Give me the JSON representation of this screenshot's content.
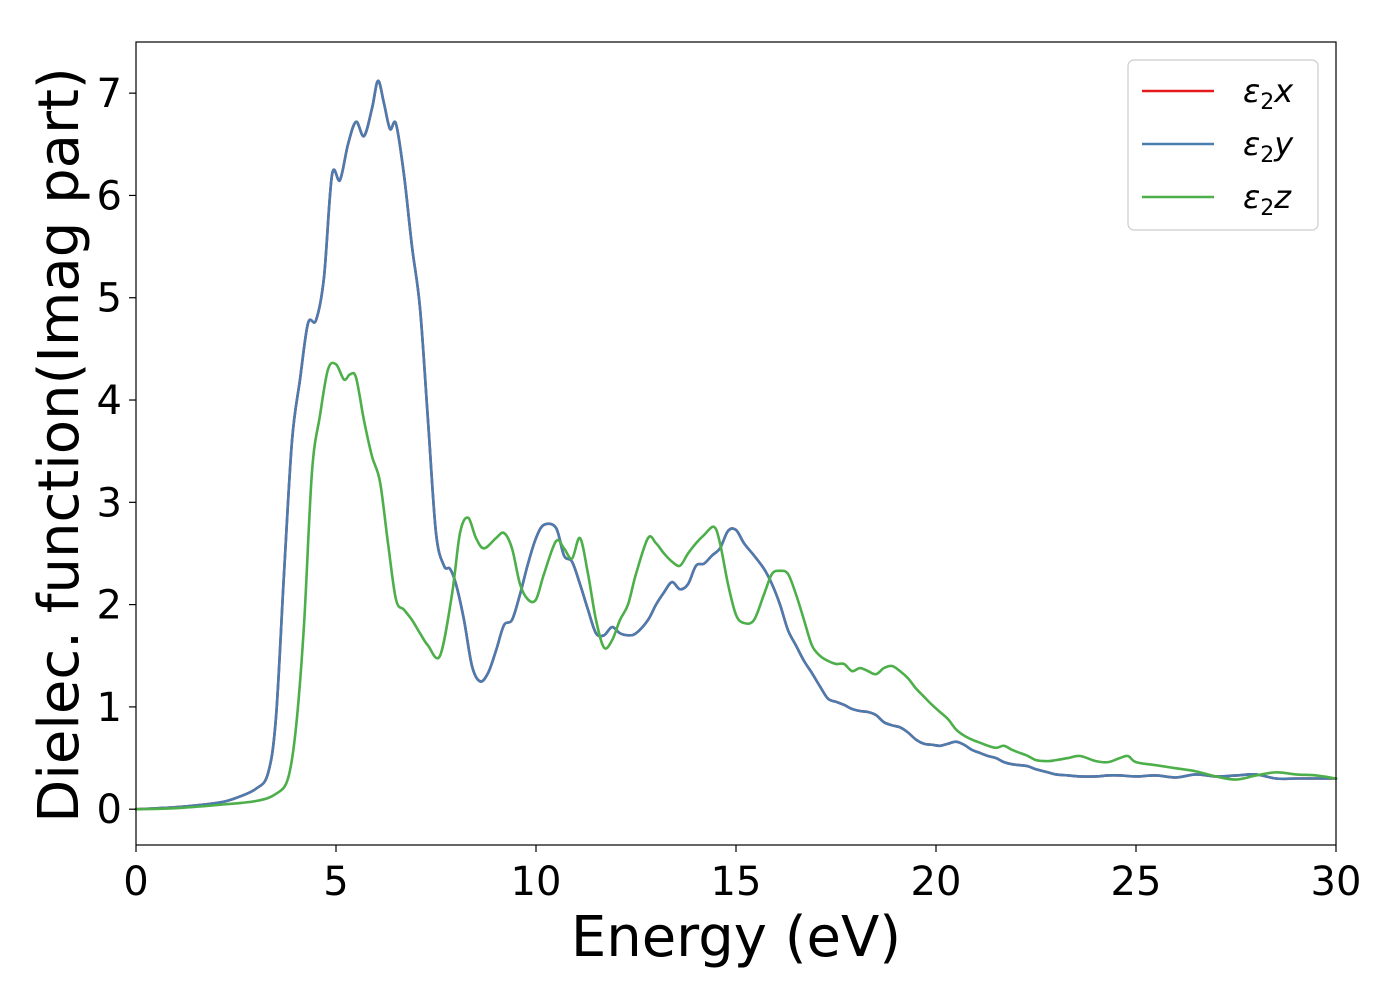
{
  "chart_data": {
    "type": "line",
    "title": "",
    "xlabel": "Energy (eV)",
    "ylabel": "Dielec. function(Imag part)",
    "xlim": [
      0,
      30
    ],
    "ylim": [
      -0.35,
      7.5
    ],
    "xticks": [
      0,
      5,
      10,
      15,
      20,
      25,
      30
    ],
    "yticks": [
      0,
      1,
      2,
      3,
      4,
      5,
      6,
      7
    ],
    "grid": false,
    "legend_position": "top-right",
    "series": [
      {
        "name": "ε2x",
        "label_base": "ε",
        "label_sub": "2",
        "label_tail": "x",
        "color": "#e41a1c",
        "x": [
          0,
          1,
          2,
          2.5,
          3,
          3.3,
          3.5,
          3.7,
          3.9,
          4.1,
          4.3,
          4.5,
          4.7,
          4.9,
          5.1,
          5.3,
          5.5,
          5.7,
          5.9,
          6.05,
          6.2,
          6.35,
          6.5,
          6.7,
          6.9,
          7.1,
          7.3,
          7.5,
          7.7,
          7.85,
          8.0,
          8.2,
          8.4,
          8.6,
          8.8,
          9.0,
          9.2,
          9.4,
          9.6,
          9.8,
          10.0,
          10.2,
          10.5,
          10.7,
          10.9,
          11.1,
          11.3,
          11.5,
          11.7,
          11.9,
          12.1,
          12.3,
          12.5,
          12.8,
          13.0,
          13.2,
          13.4,
          13.6,
          13.8,
          14.0,
          14.2,
          14.4,
          14.6,
          14.8,
          15.0,
          15.2,
          15.45,
          15.7,
          15.9,
          16.1,
          16.3,
          16.5,
          16.7,
          16.9,
          17.1,
          17.3,
          17.5,
          17.7,
          17.9,
          18.1,
          18.3,
          18.5,
          18.7,
          18.9,
          19.1,
          19.3,
          19.5,
          19.7,
          19.9,
          20.1,
          20.3,
          20.5,
          20.7,
          20.9,
          21.1,
          21.3,
          21.5,
          21.7,
          21.9,
          22.1,
          22.3,
          22.5,
          22.8,
          23.0,
          23.3,
          23.6,
          24.0,
          24.3,
          24.6,
          25.0,
          25.5,
          26.0,
          26.5,
          27.0,
          27.5,
          28.0,
          28.5,
          29.0,
          29.5,
          30.0
        ],
        "y": [
          0,
          0.02,
          0.06,
          0.11,
          0.2,
          0.35,
          0.9,
          2.3,
          3.6,
          4.2,
          4.75,
          4.78,
          5.2,
          6.2,
          6.15,
          6.5,
          6.72,
          6.58,
          6.85,
          7.12,
          6.9,
          6.65,
          6.7,
          6.2,
          5.5,
          4.9,
          3.8,
          2.7,
          2.38,
          2.35,
          2.2,
          1.85,
          1.4,
          1.25,
          1.33,
          1.55,
          1.8,
          1.85,
          2.1,
          2.4,
          2.65,
          2.78,
          2.75,
          2.48,
          2.42,
          2.2,
          1.95,
          1.72,
          1.7,
          1.78,
          1.72,
          1.7,
          1.72,
          1.85,
          2.0,
          2.12,
          2.22,
          2.15,
          2.2,
          2.38,
          2.4,
          2.48,
          2.55,
          2.72,
          2.73,
          2.6,
          2.48,
          2.35,
          2.2,
          2.0,
          1.75,
          1.6,
          1.45,
          1.33,
          1.2,
          1.08,
          1.05,
          1.02,
          0.98,
          0.96,
          0.95,
          0.92,
          0.85,
          0.82,
          0.8,
          0.75,
          0.68,
          0.64,
          0.63,
          0.62,
          0.64,
          0.66,
          0.63,
          0.58,
          0.55,
          0.52,
          0.5,
          0.46,
          0.44,
          0.43,
          0.42,
          0.39,
          0.36,
          0.34,
          0.33,
          0.32,
          0.32,
          0.33,
          0.33,
          0.32,
          0.33,
          0.31,
          0.34,
          0.32,
          0.33,
          0.34,
          0.3,
          0.3,
          0.3,
          0.3
        ]
      },
      {
        "name": "ε2y",
        "label_base": "ε",
        "label_sub": "2",
        "label_tail": "y",
        "color": "#4a7cb0",
        "x": [
          0,
          1,
          2,
          2.5,
          3,
          3.3,
          3.5,
          3.7,
          3.9,
          4.1,
          4.3,
          4.5,
          4.7,
          4.9,
          5.1,
          5.3,
          5.5,
          5.7,
          5.9,
          6.05,
          6.2,
          6.35,
          6.5,
          6.7,
          6.9,
          7.1,
          7.3,
          7.5,
          7.7,
          7.85,
          8.0,
          8.2,
          8.4,
          8.6,
          8.8,
          9.0,
          9.2,
          9.4,
          9.6,
          9.8,
          10.0,
          10.2,
          10.5,
          10.7,
          10.9,
          11.1,
          11.3,
          11.5,
          11.7,
          11.9,
          12.1,
          12.3,
          12.5,
          12.8,
          13.0,
          13.2,
          13.4,
          13.6,
          13.8,
          14.0,
          14.2,
          14.4,
          14.6,
          14.8,
          15.0,
          15.2,
          15.45,
          15.7,
          15.9,
          16.1,
          16.3,
          16.5,
          16.7,
          16.9,
          17.1,
          17.3,
          17.5,
          17.7,
          17.9,
          18.1,
          18.3,
          18.5,
          18.7,
          18.9,
          19.1,
          19.3,
          19.5,
          19.7,
          19.9,
          20.1,
          20.3,
          20.5,
          20.7,
          20.9,
          21.1,
          21.3,
          21.5,
          21.7,
          21.9,
          22.1,
          22.3,
          22.5,
          22.8,
          23.0,
          23.3,
          23.6,
          24.0,
          24.3,
          24.6,
          25.0,
          25.5,
          26.0,
          26.5,
          27.0,
          27.5,
          28.0,
          28.5,
          29.0,
          29.5,
          30.0
        ],
        "y": [
          0,
          0.02,
          0.06,
          0.11,
          0.2,
          0.35,
          0.9,
          2.3,
          3.6,
          4.2,
          4.75,
          4.78,
          5.2,
          6.2,
          6.15,
          6.5,
          6.72,
          6.58,
          6.85,
          7.12,
          6.9,
          6.65,
          6.7,
          6.2,
          5.5,
          4.9,
          3.8,
          2.7,
          2.38,
          2.35,
          2.2,
          1.85,
          1.4,
          1.25,
          1.33,
          1.55,
          1.8,
          1.85,
          2.1,
          2.4,
          2.65,
          2.78,
          2.75,
          2.48,
          2.42,
          2.2,
          1.95,
          1.72,
          1.7,
          1.78,
          1.72,
          1.7,
          1.72,
          1.85,
          2.0,
          2.12,
          2.22,
          2.15,
          2.2,
          2.38,
          2.4,
          2.48,
          2.55,
          2.72,
          2.73,
          2.6,
          2.48,
          2.35,
          2.2,
          2.0,
          1.75,
          1.6,
          1.45,
          1.33,
          1.2,
          1.08,
          1.05,
          1.02,
          0.98,
          0.96,
          0.95,
          0.92,
          0.85,
          0.82,
          0.8,
          0.75,
          0.68,
          0.64,
          0.63,
          0.62,
          0.64,
          0.66,
          0.63,
          0.58,
          0.55,
          0.52,
          0.5,
          0.46,
          0.44,
          0.43,
          0.42,
          0.39,
          0.36,
          0.34,
          0.33,
          0.32,
          0.32,
          0.33,
          0.33,
          0.32,
          0.33,
          0.31,
          0.34,
          0.32,
          0.33,
          0.34,
          0.3,
          0.3,
          0.3,
          0.3
        ]
      },
      {
        "name": "ε2z",
        "label_base": "ε",
        "label_sub": "2",
        "label_tail": "z",
        "color": "#4daf4a",
        "x": [
          0,
          1,
          2,
          3,
          3.5,
          3.8,
          4.0,
          4.2,
          4.4,
          4.6,
          4.8,
          5.0,
          5.2,
          5.35,
          5.5,
          5.7,
          5.9,
          6.1,
          6.3,
          6.5,
          6.7,
          6.9,
          7.1,
          7.3,
          7.6,
          7.9,
          8.1,
          8.3,
          8.5,
          8.7,
          9.0,
          9.2,
          9.4,
          9.6,
          9.8,
          10.0,
          10.2,
          10.5,
          10.7,
          10.9,
          11.1,
          11.3,
          11.5,
          11.7,
          11.9,
          12.1,
          12.3,
          12.5,
          12.8,
          13.0,
          13.2,
          13.4,
          13.6,
          13.8,
          14.0,
          14.2,
          14.45,
          14.6,
          14.8,
          15.0,
          15.2,
          15.45,
          15.7,
          15.9,
          16.1,
          16.3,
          16.5,
          16.7,
          16.9,
          17.1,
          17.3,
          17.5,
          17.7,
          17.9,
          18.1,
          18.3,
          18.5,
          18.7,
          18.9,
          19.1,
          19.3,
          19.5,
          19.7,
          19.9,
          20.1,
          20.3,
          20.5,
          20.7,
          20.9,
          21.1,
          21.3,
          21.5,
          21.7,
          21.9,
          22.1,
          22.3,
          22.5,
          22.8,
          23.0,
          23.3,
          23.6,
          24.0,
          24.3,
          24.6,
          24.8,
          25.0,
          25.5,
          26.0,
          26.5,
          27.0,
          27.5,
          28.0,
          28.5,
          29.0,
          29.5,
          30.0
        ],
        "y": [
          0,
          0.01,
          0.04,
          0.08,
          0.15,
          0.3,
          0.8,
          1.8,
          3.3,
          3.85,
          4.3,
          4.35,
          4.2,
          4.25,
          4.22,
          3.8,
          3.45,
          3.2,
          2.6,
          2.05,
          1.95,
          1.85,
          1.72,
          1.6,
          1.5,
          2.1,
          2.7,
          2.85,
          2.65,
          2.55,
          2.65,
          2.7,
          2.55,
          2.2,
          2.05,
          2.05,
          2.3,
          2.62,
          2.55,
          2.45,
          2.65,
          2.3,
          1.85,
          1.58,
          1.65,
          1.85,
          2.0,
          2.3,
          2.65,
          2.6,
          2.5,
          2.42,
          2.38,
          2.5,
          2.6,
          2.68,
          2.76,
          2.6,
          2.2,
          1.9,
          1.82,
          1.85,
          2.1,
          2.3,
          2.33,
          2.3,
          2.1,
          1.85,
          1.6,
          1.5,
          1.45,
          1.42,
          1.42,
          1.35,
          1.38,
          1.35,
          1.32,
          1.38,
          1.4,
          1.35,
          1.28,
          1.18,
          1.1,
          1.02,
          0.95,
          0.88,
          0.78,
          0.72,
          0.68,
          0.65,
          0.62,
          0.6,
          0.62,
          0.58,
          0.55,
          0.52,
          0.48,
          0.47,
          0.48,
          0.5,
          0.52,
          0.47,
          0.46,
          0.5,
          0.52,
          0.46,
          0.43,
          0.4,
          0.37,
          0.32,
          0.29,
          0.33,
          0.36,
          0.34,
          0.33,
          0.3
        ]
      }
    ]
  }
}
